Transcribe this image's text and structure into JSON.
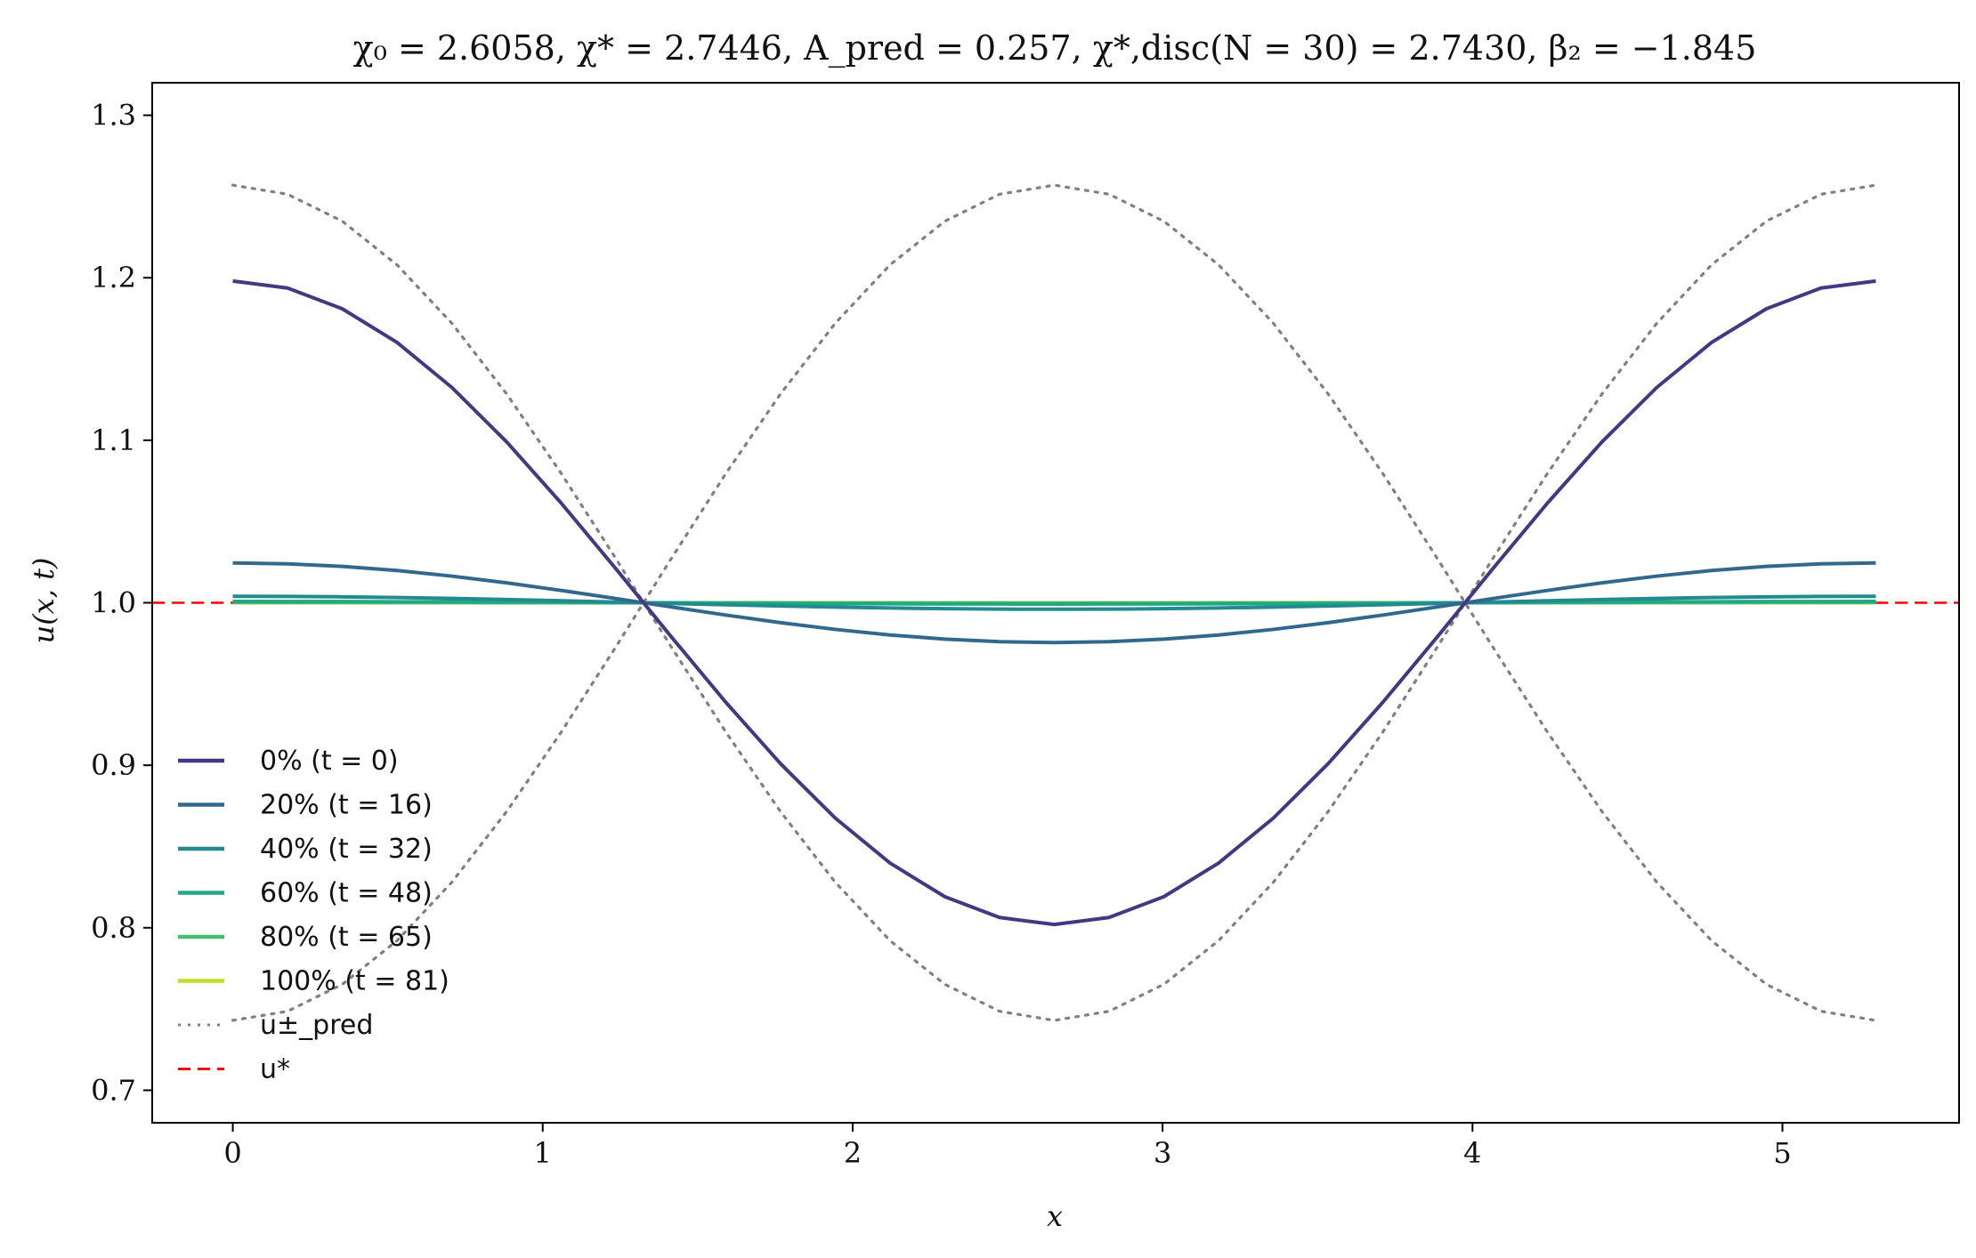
{
  "chart_data": {
    "type": "line",
    "title": "χ₀ = 2.6058, χ* = 2.7446, A_pred = 0.257, χ*,disc(N = 30) = 2.7430, β₂ = −1.845",
    "xlabel": "x",
    "ylabel": "u(x, t)",
    "xlim": [
      -0.26,
      5.57
    ],
    "ylim": [
      0.68,
      1.32
    ],
    "x_ticks": [
      0,
      1,
      2,
      3,
      4,
      5
    ],
    "y_ticks": [
      0.7,
      0.8,
      0.9,
      1.0,
      1.1,
      1.2,
      1.3
    ],
    "x_tick_labels": [
      "0",
      "1",
      "2",
      "3",
      "4",
      "5"
    ],
    "y_tick_labels": [
      "0.7",
      "0.8",
      "0.9",
      "1.0",
      "1.1",
      "1.2",
      "1.3"
    ],
    "grid": false,
    "legend_position": "lower-left",
    "x_range": [
      0,
      5.3014
    ],
    "n_points": 31,
    "series": [
      {
        "name": "0% (t = 0)",
        "color": "#433983",
        "amplitude": 0.198,
        "style": "solid"
      },
      {
        "name": "20% (t = 16)",
        "color": "#31688e",
        "amplitude": 0.0245,
        "style": "solid"
      },
      {
        "name": "40% (t = 32)",
        "color": "#238a8d",
        "amplitude": 0.004,
        "style": "solid"
      },
      {
        "name": "60% (t = 48)",
        "color": "#22a884",
        "amplitude": 0.0008,
        "style": "solid"
      },
      {
        "name": "80% (t = 65)",
        "color": "#44bf70",
        "amplitude": 0.0002,
        "style": "solid"
      },
      {
        "name": "100% (t = 81)",
        "color": "#bddf26",
        "amplitude": 0.0,
        "style": "solid"
      },
      {
        "name": "u±_pred",
        "color": "#808080",
        "amplitude": 0.257,
        "style": "dotted",
        "both_signs": true
      }
    ],
    "reference_line": {
      "name": "u*",
      "y": 1.0,
      "color": "#ff0000",
      "style": "dashed"
    }
  }
}
